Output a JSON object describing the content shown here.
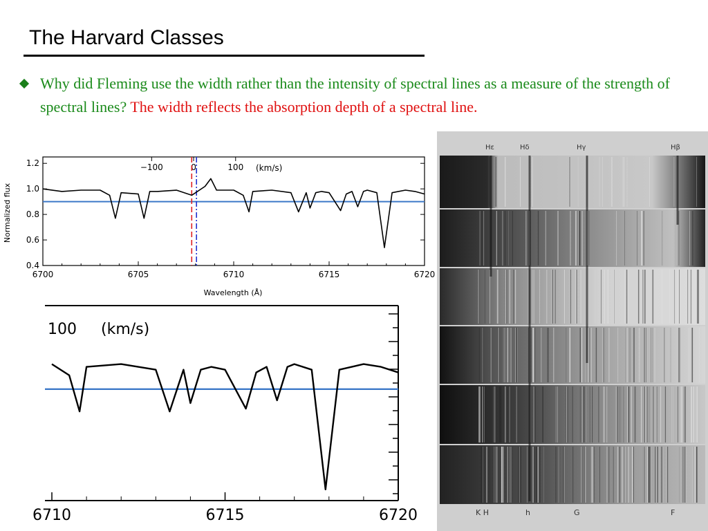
{
  "slide": {
    "title": "The Harvard Classes",
    "question": "Why did Fleming use the width rather than the intensity of spectral lines as a measure of the strength of spectral lines?",
    "answer": "The width reflects the absorption depth of a spectral line."
  },
  "colors": {
    "question": "#1a8a1a",
    "answer": "#e01010",
    "reference_line": "#3c78c8",
    "velocity_zero_red": "#e02020",
    "velocity_zero_blue": "#2030d0"
  },
  "chart_data": [
    {
      "type": "line",
      "title": "",
      "xlabel": "Wavelength (Å)",
      "ylabel": "Normalized flux",
      "xlim": [
        6700,
        6720
      ],
      "ylim": [
        0.4,
        1.25
      ],
      "x_ticks": [
        "6700",
        "6705",
        "6710",
        "6715",
        "6720"
      ],
      "y_ticks": [
        "0.4",
        "0.6",
        "0.8",
        "1.0",
        "1.2"
      ],
      "top_axis_label": "(km/s)",
      "top_ticks": [
        "−100",
        "0",
        "100"
      ],
      "reference_flux": 0.9,
      "velocity_zero_markers": [
        6707.8,
        6708.05
      ],
      "spectrum": {
        "x": [
          6700,
          6701,
          6702,
          6703,
          6703.5,
          6703.8,
          6704.1,
          6705,
          6705.3,
          6705.6,
          6706,
          6707,
          6707.8,
          6708.5,
          6708.8,
          6709.1,
          6710,
          6710.5,
          6710.8,
          6711,
          6712,
          6713,
          6713.4,
          6713.8,
          6714,
          6714.3,
          6714.6,
          6715,
          6715.6,
          6715.9,
          6716.2,
          6716.5,
          6716.8,
          6717,
          6717.5,
          6717.9,
          6718.3,
          6719,
          6719.5,
          6720
        ],
        "y": [
          1.0,
          0.98,
          0.99,
          0.99,
          0.95,
          0.77,
          0.97,
          0.96,
          0.77,
          0.98,
          0.98,
          0.99,
          0.95,
          1.02,
          1.08,
          0.99,
          0.99,
          0.95,
          0.82,
          0.98,
          0.99,
          0.97,
          0.82,
          0.97,
          0.85,
          0.97,
          0.98,
          0.97,
          0.83,
          0.96,
          0.98,
          0.86,
          0.98,
          0.99,
          0.97,
          0.54,
          0.97,
          0.99,
          0.98,
          0.96
        ]
      }
    },
    {
      "type": "line",
      "title": "",
      "xlabel": "",
      "ylabel": "",
      "xlim": [
        6709.8,
        6720
      ],
      "ylim": [
        0.5,
        1.2
      ],
      "x_ticks": [
        "6710",
        "6715",
        "6720"
      ],
      "top_axis_label": "(km/s)",
      "top_ticks": [
        "100"
      ],
      "reference_flux": 0.9
    }
  ],
  "plate": {
    "top_labels": [
      "Hε",
      "Hδ",
      "Hγ",
      "Hβ"
    ],
    "bottom_labels": [
      "K H",
      "h",
      "G",
      "F"
    ]
  }
}
